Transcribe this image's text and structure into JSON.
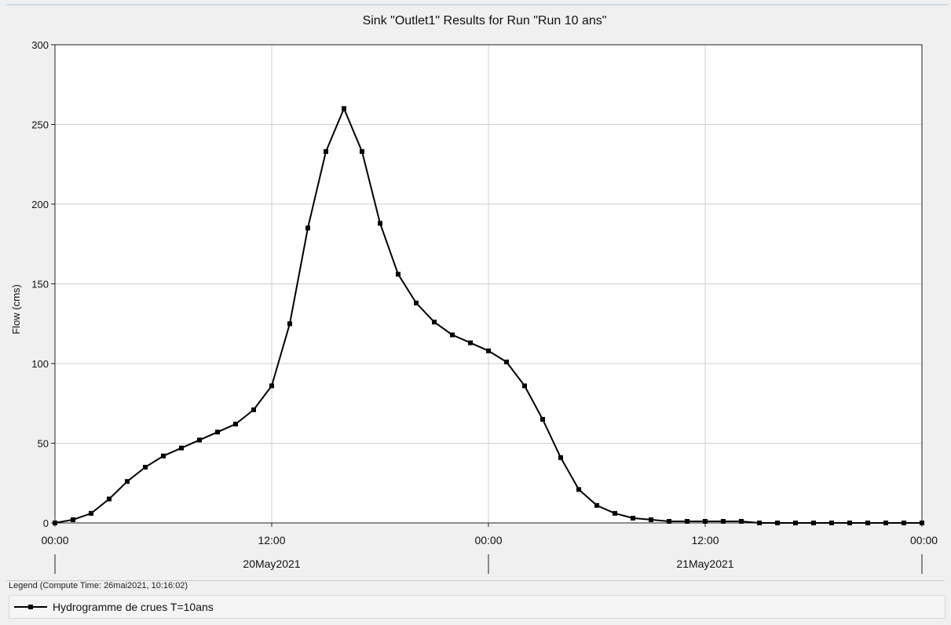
{
  "chart_data": {
    "type": "line",
    "title": "Sink \"Outlet1\" Results for Run \"Run 10 ans\"",
    "ylabel": "Flow (cms)",
    "xlabel": "",
    "ylim": [
      0,
      300
    ],
    "yticks": [
      "0",
      "50",
      "100",
      "150",
      "200",
      "250",
      "300"
    ],
    "xlim_hours": [
      0,
      48
    ],
    "x_tick_labels": [
      "00:00",
      "12:00",
      "00:00",
      "12:00",
      "00:00"
    ],
    "date_labels": [
      "20May2021",
      "21May2021"
    ],
    "grid": true,
    "series": [
      {
        "name": "Hydrogramme de crues T=10ans",
        "color": "#000000",
        "marker": "square",
        "x": [
          "2021-05-20 00:00",
          "2021-05-20 01:00",
          "2021-05-20 02:00",
          "2021-05-20 03:00",
          "2021-05-20 04:00",
          "2021-05-20 05:00",
          "2021-05-20 06:00",
          "2021-05-20 07:00",
          "2021-05-20 08:00",
          "2021-05-20 09:00",
          "2021-05-20 10:00",
          "2021-05-20 11:00",
          "2021-05-20 12:00",
          "2021-05-20 13:00",
          "2021-05-20 14:00",
          "2021-05-20 15:00",
          "2021-05-20 16:00",
          "2021-05-20 17:00",
          "2021-05-20 18:00",
          "2021-05-20 19:00",
          "2021-05-20 20:00",
          "2021-05-20 21:00",
          "2021-05-20 22:00",
          "2021-05-20 23:00",
          "2021-05-21 00:00",
          "2021-05-21 01:00",
          "2021-05-21 02:00",
          "2021-05-21 03:00",
          "2021-05-21 04:00",
          "2021-05-21 05:00",
          "2021-05-21 06:00",
          "2021-05-21 07:00",
          "2021-05-21 08:00",
          "2021-05-21 09:00",
          "2021-05-21 10:00",
          "2021-05-21 11:00",
          "2021-05-21 12:00",
          "2021-05-21 13:00",
          "2021-05-21 14:00",
          "2021-05-21 15:00",
          "2021-05-21 16:00",
          "2021-05-21 17:00",
          "2021-05-21 18:00",
          "2021-05-21 19:00",
          "2021-05-21 20:00",
          "2021-05-21 21:00",
          "2021-05-21 22:00",
          "2021-05-21 23:00",
          "2021-05-22 00:00"
        ],
        "values": [
          0,
          2,
          6,
          15,
          26,
          35,
          42,
          47,
          52,
          57,
          62,
          71,
          86,
          125,
          185,
          233,
          260,
          233,
          188,
          156,
          138,
          126,
          118,
          113,
          108,
          101,
          86,
          65,
          41,
          21,
          11,
          6,
          3,
          2,
          1,
          1,
          1,
          1,
          1,
          0,
          0,
          0,
          0,
          0,
          0,
          0,
          0,
          0,
          0
        ]
      }
    ],
    "legend_position": "bottom"
  },
  "legend": {
    "title": "Legend (Compute Time: 26mai2021, 10:16:02)"
  }
}
